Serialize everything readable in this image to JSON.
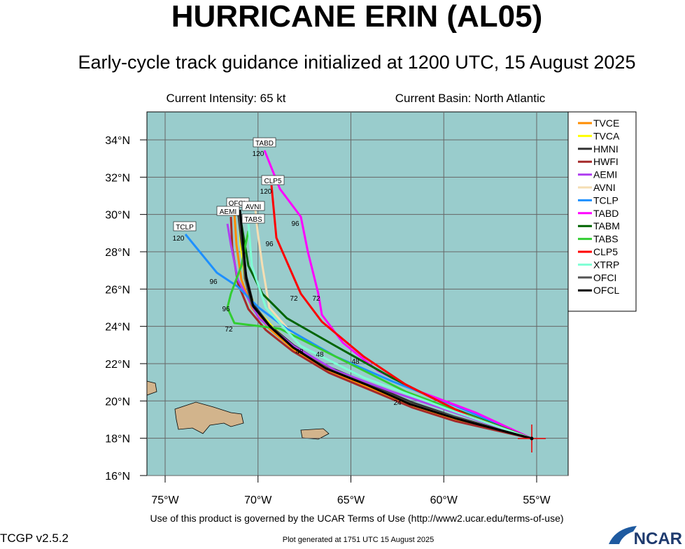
{
  "header": {
    "title": "HURRICANE ERIN (AL05)",
    "subtitle": "Early-cycle track guidance initialized at 1200 UTC, 15 August 2025",
    "intensity": "Current Intensity: 65 kt",
    "basin": "Current Basin: North Atlantic"
  },
  "axes": {
    "lat_labels": [
      "34°N",
      "32°N",
      "30°N",
      "28°N",
      "26°N",
      "24°N",
      "22°N",
      "20°N",
      "18°N",
      "16°N"
    ],
    "lon_labels": [
      "75°W",
      "70°W",
      "65°W",
      "60°W",
      "55°W"
    ]
  },
  "legend": [
    {
      "name": "TVCE",
      "color": "#ff8c00"
    },
    {
      "name": "TVCA",
      "color": "#ffff00"
    },
    {
      "name": "HMNI",
      "color": "#333333"
    },
    {
      "name": "HWFI",
      "color": "#a52a2a"
    },
    {
      "name": "AEMI",
      "color": "#b040f0"
    },
    {
      "name": "AVNI",
      "color": "#f5deb3"
    },
    {
      "name": "TCLP",
      "color": "#1e90ff"
    },
    {
      "name": "TABD",
      "color": "#ff00ff"
    },
    {
      "name": "TABM",
      "color": "#006400"
    },
    {
      "name": "TABS",
      "color": "#32cd32"
    },
    {
      "name": "CLP5",
      "color": "#ff0000"
    },
    {
      "name": "XTRP",
      "color": "#7fffd4"
    },
    {
      "name": "OFCI",
      "color": "#555555"
    },
    {
      "name": "OFCL",
      "color": "#000000"
    }
  ],
  "map_labels": {
    "boxes": [
      "TABD",
      "CLP5",
      "TCLP",
      "OFCL",
      "AEMI",
      "AVNI",
      "TABS"
    ],
    "hours": [
      "120",
      "120",
      "120",
      "96",
      "96",
      "96",
      "96",
      "72",
      "72",
      "72",
      "48",
      "48",
      "48",
      "24"
    ]
  },
  "footer": {
    "terms": "Use of this product is governed by the UCAR Terms of Use (http://www2.ucar.edu/terms-of-use)",
    "version": "TCGP v2.5.2",
    "generated": "Plot generated at 1751 UTC   15 August 2025",
    "logo": "NCAR"
  }
}
